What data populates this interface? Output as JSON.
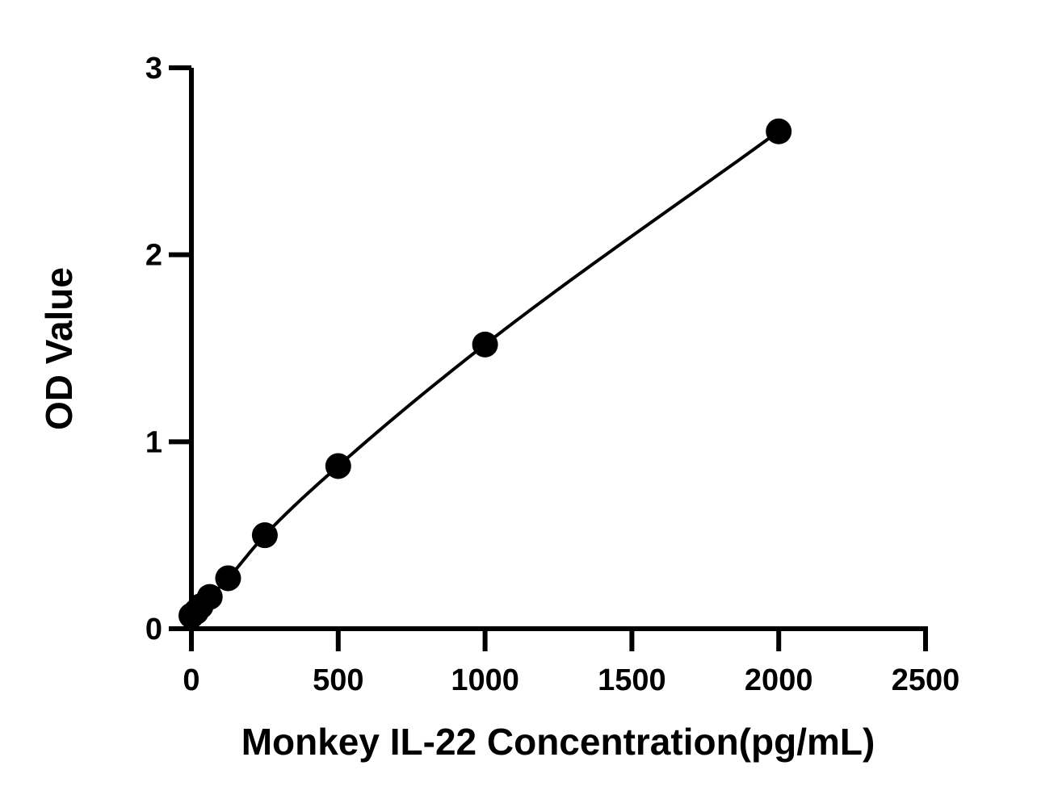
{
  "chart_data": {
    "type": "scatter",
    "title": "",
    "xlabel": "Monkey IL-22 Concentration(pg/mL)",
    "ylabel": "OD Value",
    "xlim": [
      0,
      2500
    ],
    "ylim": [
      0,
      3
    ],
    "xticks": [
      0,
      500,
      1000,
      1500,
      2000,
      2500
    ],
    "xtick_labels": [
      "0",
      "500",
      "1000",
      "1500",
      "2000",
      "2500"
    ],
    "yticks": [
      0,
      1,
      2,
      3
    ],
    "ytick_labels": [
      "0",
      "1",
      "2",
      "3"
    ],
    "grid": false,
    "legend": "none",
    "fit_curve": true,
    "marker_color": "#000000",
    "line_color": "#000000",
    "series": [
      {
        "x": [
          0,
          15.6,
          31.3,
          62.5,
          125,
          250,
          500,
          1000,
          2000
        ],
        "y": [
          0.07,
          0.09,
          0.12,
          0.17,
          0.27,
          0.5,
          0.87,
          1.52,
          2.66
        ]
      }
    ]
  }
}
